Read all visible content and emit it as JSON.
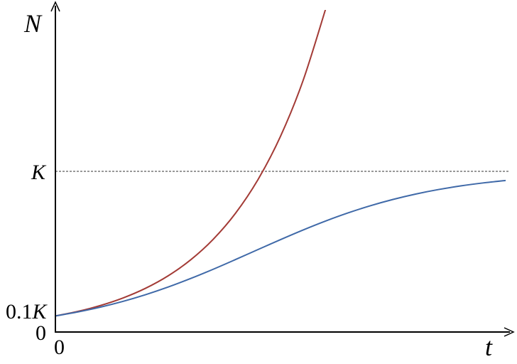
{
  "chart_data": {
    "type": "line",
    "title": "",
    "xlabel": "t",
    "ylabel": "N",
    "x_tick_labels": [
      "0"
    ],
    "y_tick_labels": [
      {
        "value": 0,
        "label": "0"
      },
      {
        "value": 0.1,
        "label": "0.1K"
      },
      {
        "value": 1,
        "label": "K"
      }
    ],
    "reference_line": {
      "value": 1,
      "label": "K",
      "style": "dashed"
    },
    "xlim": [
      0,
      5
    ],
    "ylim": [
      0,
      2.05
    ],
    "grid": false,
    "series": [
      {
        "color": "#a33b36",
        "x": [
          0,
          0.25,
          0.5,
          0.75,
          1,
          1.25,
          1.5,
          1.75,
          2,
          2.25,
          2.5,
          2.75,
          3
        ],
        "y": [
          0.1,
          0.1284,
          0.1649,
          0.2117,
          0.2718,
          0.349,
          0.4482,
          0.5755,
          0.7389,
          0.9488,
          1.2182,
          1.5643,
          2.0086
        ]
      },
      {
        "color": "#3f69a8",
        "x": [
          0,
          0.25,
          0.5,
          0.75,
          1,
          1.25,
          1.5,
          1.75,
          2,
          2.25,
          2.5,
          2.75,
          3,
          3.25,
          3.5,
          3.75,
          4,
          4.25,
          4.5,
          4.75,
          5
        ],
        "y": [
          0.1,
          0.1249,
          0.1548,
          0.1904,
          0.232,
          0.2794,
          0.3325,
          0.39,
          0.4509,
          0.5132,
          0.5751,
          0.6348,
          0.6906,
          0.7413,
          0.7863,
          0.8253,
          0.8585,
          0.8863,
          0.9092,
          0.9278,
          0.9429
        ]
      }
    ]
  }
}
